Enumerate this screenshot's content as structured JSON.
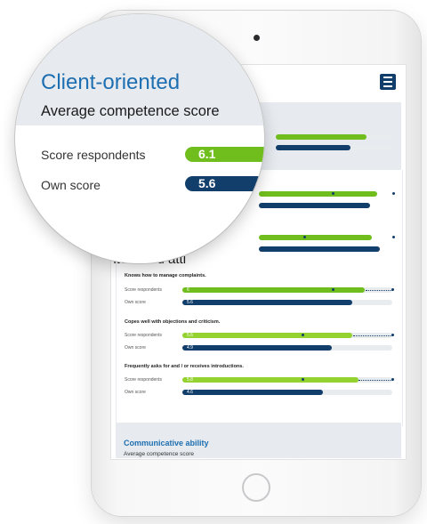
{
  "magnifier": {
    "title": "Client-oriented",
    "subtitle": "Average competence score",
    "rows": [
      {
        "label": "Score respondents",
        "value": "6.1"
      },
      {
        "label": "Own score",
        "value": "5.6"
      }
    ]
  },
  "screen": {
    "heading_fragment": "interested atti",
    "questions": [
      {
        "title": "Knows how to manage complaints.",
        "rows": [
          {
            "label": "Score respondents",
            "value": "6",
            "level": 0.87
          },
          {
            "label": "Own score",
            "value": "5.6",
            "level": 0.81
          }
        ]
      },
      {
        "title": "Copes well with objections and criticism.",
        "rows": [
          {
            "label": "Score respondents",
            "value": "5.6",
            "level": 0.81
          },
          {
            "label": "Own score",
            "value": "4.9",
            "level": 0.71
          }
        ]
      },
      {
        "title": "Frequently asks for and / or receives introductions.",
        "rows": [
          {
            "label": "Score respondents",
            "value": "5.8",
            "level": 0.84
          },
          {
            "label": "Own score",
            "value": "4.6",
            "level": 0.67
          }
        ]
      }
    ],
    "next_section": {
      "title": "Communicative ability",
      "subtitle": "Average competence score"
    }
  },
  "colors": {
    "respondents": "#6fbe1e",
    "own": "#123e6b",
    "accent": "#1d6fb1",
    "panel": "#e7ebf0"
  },
  "icons": {
    "menu": "hamburger-menu-icon"
  }
}
